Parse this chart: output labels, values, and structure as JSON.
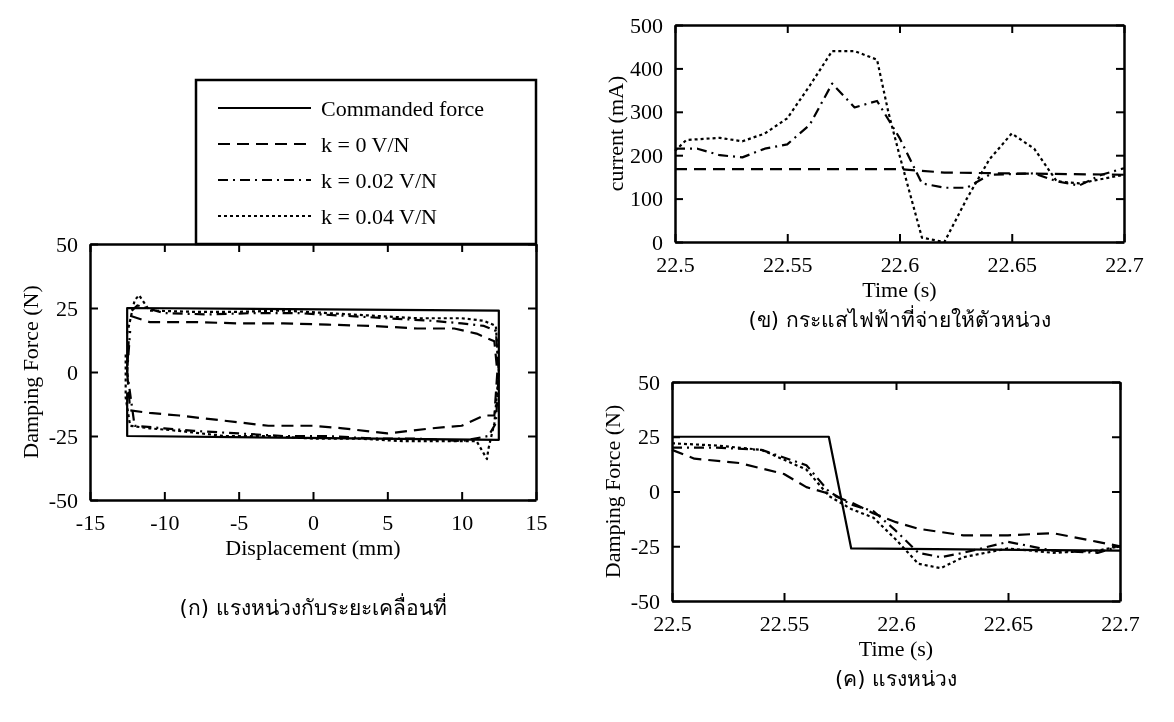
{
  "chart_data": [
    {
      "type": "line",
      "title": "(ก) แรงหน่วงกับระยะเคลื่อนที่",
      "xlabel": "Displacement (mm)",
      "ylabel": "Damping Force (N)",
      "xlim": [
        -15,
        15
      ],
      "ylim": [
        -50,
        50
      ],
      "xticks": [
        -15,
        -10,
        -5,
        0,
        5,
        10,
        15
      ],
      "yticks": [
        -50,
        -25,
        0,
        25,
        50
      ],
      "legend": "top right",
      "series": [
        {
          "name": "Commanded force",
          "color": "#000000",
          "line_style": "solid",
          "x": [
            -12.5,
            -12.5,
            12.5,
            12.5,
            -12.5,
            -12.5
          ],
          "values": [
            0,
            25,
            24,
            -26.5,
            -25,
            -8
          ]
        },
        {
          "name": "k = 0 V/N",
          "color": "#000000",
          "line_style": "dashed",
          "x": [
            -12.3,
            -11,
            -8,
            -5,
            -2,
            1,
            4,
            7,
            9.5,
            11,
            12.2,
            12.4,
            12.2,
            11.5,
            10,
            8,
            5,
            2,
            0,
            -3,
            -6,
            -9,
            -11,
            -12.3,
            -12.5,
            -12.4
          ],
          "values": [
            22,
            19.5,
            19.5,
            19,
            19,
            18.5,
            18,
            17,
            17,
            15,
            12,
            0,
            -17,
            -17,
            -21,
            -22,
            -24,
            -22,
            -21,
            -21,
            -19,
            -17,
            -16,
            -15,
            0,
            12
          ]
        },
        {
          "name": "k = 0.02 V/N",
          "color": "#000000",
          "line_style": "dashdot",
          "x": [
            -12.2,
            -11.8,
            -10,
            -7,
            -4,
            -1,
            2,
            5,
            8,
            10,
            11.5,
            12.3,
            12.5,
            12.3,
            11.8,
            10,
            7,
            4,
            1,
            -2,
            -5,
            -8,
            -10,
            -12,
            -12.5,
            -12.3
          ],
          "values": [
            24,
            26,
            23,
            22.5,
            23,
            23,
            22,
            21,
            20,
            19,
            18,
            16,
            0,
            -20,
            -25,
            -27,
            -26,
            -26,
            -25,
            -25,
            -24,
            -23,
            -22,
            -21,
            0,
            16
          ]
        },
        {
          "name": "k = 0.04 V/N",
          "color": "#000000",
          "line_style": "dotted",
          "x": [
            -12.5,
            -12,
            -11.7,
            -11,
            -8,
            -5,
            -2,
            1,
            4,
            7,
            10,
            11.5,
            12.3,
            12.5,
            12.2,
            11.8,
            11.7,
            11,
            9,
            6,
            3,
            0,
            -3,
            -6,
            -9,
            -11,
            -12.3,
            -12.6,
            -12.6
          ],
          "values": [
            15,
            28,
            30,
            24,
            23.5,
            23.5,
            24,
            23,
            22,
            21,
            21,
            20,
            18,
            0,
            -20,
            -30,
            -34,
            -27,
            -27,
            -27,
            -26,
            -26,
            -25,
            -25,
            -23,
            -22,
            -21,
            -10,
            8
          ]
        }
      ]
    },
    {
      "type": "line",
      "title": "(ข) กระแสไฟฟ้าที่จ่ายให้ตัวหน่วง",
      "xlabel": "Time (s)",
      "ylabel": "current (mA)",
      "xlim": [
        22.5,
        22.7
      ],
      "ylim": [
        0,
        500
      ],
      "xticks": [
        22.5,
        22.55,
        22.6,
        22.65,
        22.7
      ],
      "yticks": [
        0,
        100,
        200,
        300,
        400,
        500
      ],
      "series": [
        {
          "color": "#000000",
          "line_style": "dashed",
          "x": [
            22.5,
            22.55,
            22.6,
            22.62,
            22.65,
            22.7
          ],
          "values": [
            168,
            168,
            168,
            160,
            158,
            155
          ]
        },
        {
          "color": "#000000",
          "line_style": "dashdot",
          "x": [
            22.5,
            22.51,
            22.52,
            22.53,
            22.54,
            22.55,
            22.56,
            22.57,
            22.58,
            22.59,
            22.6,
            22.61,
            22.62,
            22.63,
            22.64,
            22.66,
            22.67,
            22.68,
            22.69,
            22.7
          ],
          "values": [
            215,
            215,
            200,
            195,
            215,
            225,
            270,
            365,
            310,
            325,
            240,
            135,
            125,
            125,
            155,
            158,
            140,
            130,
            155,
            170
          ]
        },
        {
          "color": "#000000",
          "line_style": "dotted",
          "x": [
            22.5,
            22.505,
            22.52,
            22.53,
            22.54,
            22.55,
            22.56,
            22.57,
            22.58,
            22.59,
            22.595,
            22.6,
            22.61,
            22.62,
            22.63,
            22.64,
            22.65,
            22.66,
            22.67,
            22.68,
            22.7
          ],
          "values": [
            210,
            235,
            240,
            232,
            250,
            285,
            360,
            440,
            440,
            420,
            300,
            200,
            10,
            0,
            100,
            190,
            250,
            215,
            140,
            135,
            155
          ]
        }
      ]
    },
    {
      "type": "line",
      "title": "(ค) แรงหน่วง",
      "xlabel": "Time (s)",
      "ylabel": "Damping Force (N)",
      "xlim": [
        22.5,
        22.7
      ],
      "ylim": [
        -50,
        50
      ],
      "xticks": [
        22.5,
        22.55,
        22.6,
        22.65,
        22.7
      ],
      "yticks": [
        -50,
        -25,
        0,
        25,
        50
      ],
      "series": [
        {
          "color": "#000000",
          "line_style": "solid",
          "x": [
            22.5,
            22.57,
            22.58,
            22.7
          ],
          "values": [
            25,
            25,
            -26,
            -27
          ]
        },
        {
          "color": "#000000",
          "line_style": "dashed",
          "x": [
            22.5,
            22.51,
            22.53,
            22.55,
            22.56,
            22.57,
            22.58,
            22.59,
            22.6,
            22.61,
            22.63,
            22.65,
            22.67,
            22.69,
            22.7
          ],
          "values": [
            19,
            15,
            13,
            8,
            2,
            -1,
            -5,
            -10,
            -14,
            -17,
            -20,
            -20,
            -19,
            -23,
            -25
          ]
        },
        {
          "color": "#000000",
          "line_style": "dashdot",
          "x": [
            22.5,
            22.52,
            22.54,
            22.56,
            22.57,
            22.58,
            22.59,
            22.6,
            22.61,
            22.62,
            22.63,
            22.65,
            22.67,
            22.69,
            22.7
          ],
          "values": [
            20,
            20,
            19,
            12,
            0,
            -6,
            -9,
            -18,
            -28,
            -30,
            -28,
            -23,
            -27,
            -28,
            -25
          ]
        },
        {
          "color": "#000000",
          "line_style": "dotted",
          "x": [
            22.5,
            22.52,
            22.54,
            22.56,
            22.57,
            22.58,
            22.59,
            22.6,
            22.61,
            22.62,
            22.63,
            22.65,
            22.67,
            22.69,
            22.7
          ],
          "values": [
            22,
            21,
            19,
            10,
            -2,
            -8,
            -12,
            -22,
            -33,
            -35,
            -30,
            -26,
            -28,
            -27,
            -25
          ]
        }
      ]
    }
  ]
}
